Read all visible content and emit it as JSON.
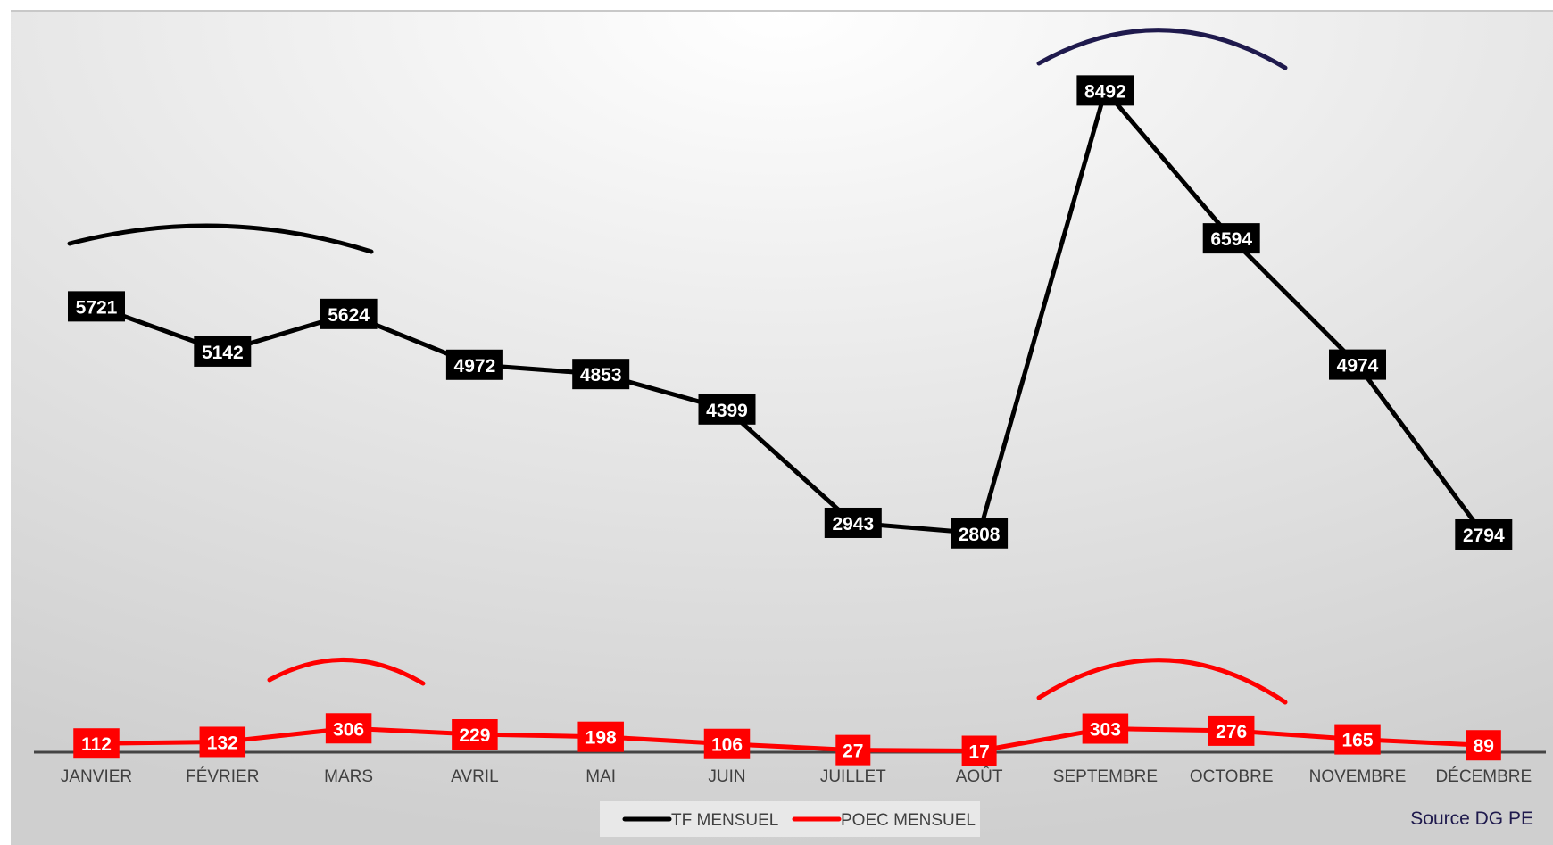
{
  "chart_data": {
    "type": "line",
    "categories": [
      "JANVIER",
      "FÉVRIER",
      "MARS",
      "AVRIL",
      "MAI",
      "JUIN",
      "JUILLET",
      "AOÛT",
      "SEPTEMBRE",
      "OCTOBRE",
      "NOVEMBRE",
      "DÉCEMBRE"
    ],
    "series": [
      {
        "name": "TF MENSUEL",
        "color": "#000000",
        "values": [
          5721,
          5142,
          5624,
          4972,
          4853,
          4399,
          2943,
          2808,
          8492,
          6594,
          4974,
          2794
        ]
      },
      {
        "name": "POEC MENSUEL",
        "color": "#ff0000",
        "values": [
          112,
          132,
          306,
          229,
          198,
          106,
          27,
          17,
          303,
          276,
          165,
          89
        ]
      }
    ],
    "ylim": [
      0,
      9000
    ],
    "grid": false,
    "legend": "bottom-center",
    "data_labels": true,
    "annotations": [
      {
        "type": "arc",
        "series": "TF MENSUEL",
        "from": "JANVIER",
        "to": "MARS",
        "color": "#000000"
      },
      {
        "type": "arc",
        "series": "TF MENSUEL",
        "from": "SEPTEMBRE",
        "to": "OCTOBRE",
        "color": "#1f1a4d"
      },
      {
        "type": "arc",
        "series": "POEC MENSUEL",
        "from": "MARS",
        "to": "MARS",
        "color": "#ff0000"
      },
      {
        "type": "arc",
        "series": "POEC MENSUEL",
        "from": "SEPTEMBRE",
        "to": "OCTOBRE",
        "color": "#ff0000"
      }
    ],
    "source": "Source DG PE"
  }
}
